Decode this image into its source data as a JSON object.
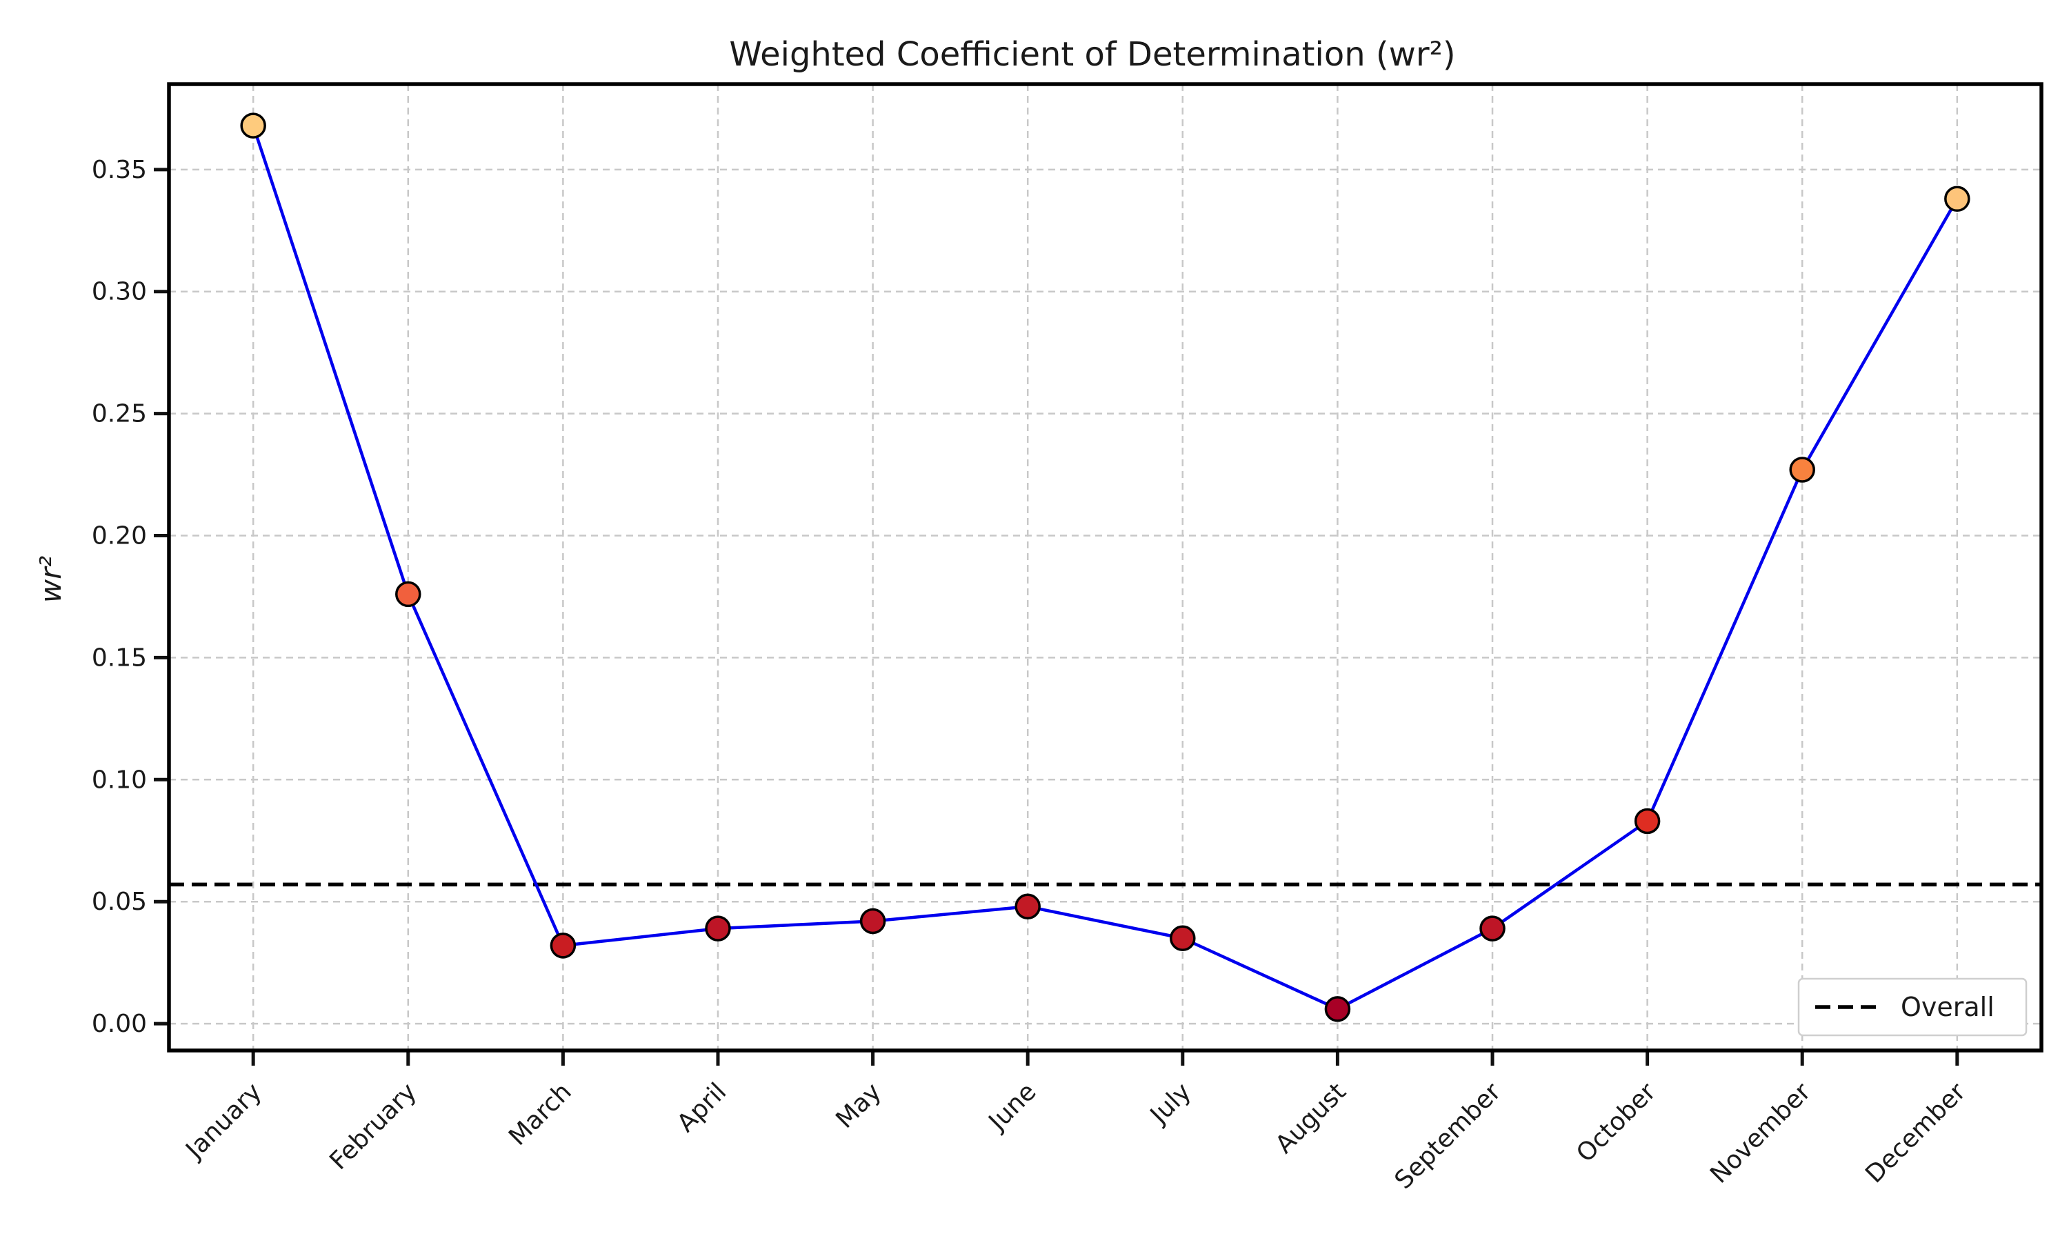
{
  "chart_data": {
    "type": "line",
    "title": "Weighted Coefficient of Determination (wr²)",
    "xlabel": "",
    "ylabel": "wr²",
    "categories": [
      "January",
      "February",
      "March",
      "April",
      "May",
      "June",
      "July",
      "August",
      "September",
      "October",
      "November",
      "December"
    ],
    "series": [
      {
        "values": [
          0.368,
          0.176,
          0.032,
          0.039,
          0.042,
          0.048,
          0.035,
          0.006,
          0.039,
          0.083,
          0.227,
          0.338
        ],
        "line_color": "#0000ee",
        "marker_colors": [
          "#fecb7d",
          "#f1603d",
          "#c91d22",
          "#be1526",
          "#be1526",
          "#c21a25",
          "#c21a25",
          "#a80026",
          "#be1526",
          "#de2d22",
          "#f8823e",
          "#fdc47a"
        ]
      }
    ],
    "reference_line": {
      "label": "Overall",
      "value": 0.057,
      "style": "dashed",
      "color": "#000000"
    },
    "y_ticks": [
      "0.00",
      "0.05",
      "0.10",
      "0.15",
      "0.20",
      "0.25",
      "0.30",
      "0.35"
    ],
    "ylim": [
      -0.011,
      0.385
    ],
    "grid": true,
    "legend": {
      "position": "bottom-right",
      "entries": [
        "Overall"
      ]
    }
  }
}
